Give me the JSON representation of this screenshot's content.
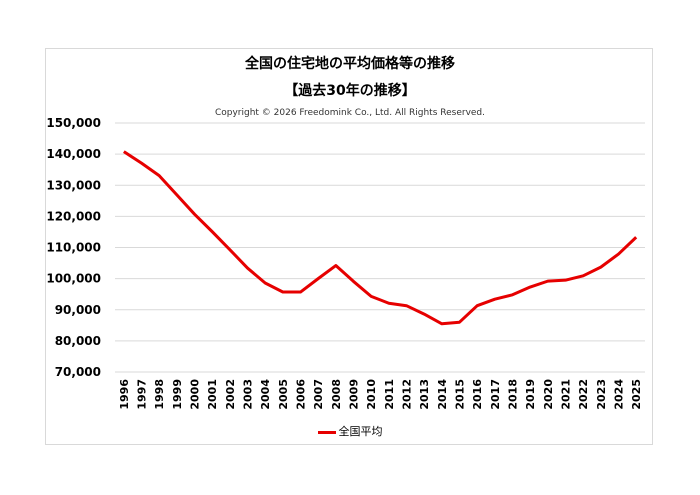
{
  "chart_data": {
    "type": "line",
    "title": "全国の住宅地の平均価格等の推移",
    "subtitle": "【過去30年の推移】",
    "copyright": "Copyright © 2026 Freedomink Co., Ltd. All Rights Reserved.",
    "xlabel": "",
    "ylabel": "",
    "ylim": [
      70000,
      150000
    ],
    "y_ticks": [
      "70,000",
      "80,000",
      "90,000",
      "100,000",
      "110,000",
      "120,000",
      "130,000",
      "140,000",
      "150,000"
    ],
    "grid": true,
    "legend_position": "bottom",
    "categories": [
      "1996",
      "1997",
      "1998",
      "1999",
      "2000",
      "2001",
      "2002",
      "2003",
      "2004",
      "2005",
      "2006",
      "2007",
      "2008",
      "2009",
      "2010",
      "2011",
      "2012",
      "2013",
      "2014",
      "2015",
      "2016",
      "2017",
      "2018",
      "2019",
      "2020",
      "2021",
      "2022",
      "2023",
      "2024",
      "2025"
    ],
    "series": [
      {
        "name": "全国平均",
        "color": "#e60000",
        "values": [
          140800,
          137100,
          133100,
          126900,
          120700,
          115100,
          109300,
          103400,
          98600,
          95700,
          95700,
          100000,
          104200,
          99100,
          94300,
          92100,
          91300,
          88600,
          85500,
          86000,
          91300,
          93400,
          94800,
          97300,
          99200,
          99500,
          100900,
          103700,
          107900,
          113300
        ]
      }
    ]
  }
}
